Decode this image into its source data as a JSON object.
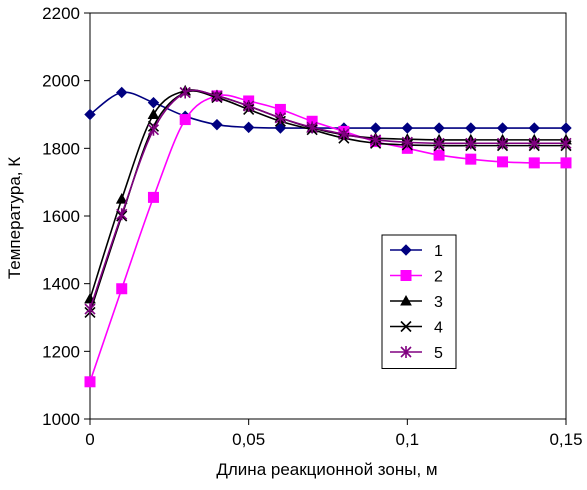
{
  "chart_data": {
    "type": "line",
    "title": "",
    "xlabel": "Длина реакционной зоны, м",
    "ylabel": "Температура, К",
    "xlim": [
      0,
      0.15
    ],
    "ylim": [
      1000,
      2200
    ],
    "xticks": [
      0,
      0.05,
      0.1,
      0.15
    ],
    "xtick_labels": [
      "0",
      "0,05",
      "0,1",
      "0,15"
    ],
    "yticks": [
      1000,
      1200,
      1400,
      1600,
      1800,
      2000,
      2200
    ],
    "ytick_labels": [
      "1000",
      "1200",
      "1400",
      "1600",
      "1800",
      "2000",
      "2200"
    ],
    "grid": false,
    "legend_position": "center-right",
    "series": [
      {
        "name": "1",
        "color": "#000080",
        "marker": "diamond",
        "x": [
          0,
          0.01,
          0.02,
          0.03,
          0.04,
          0.05,
          0.06,
          0.07,
          0.08,
          0.09,
          0.1,
          0.11,
          0.12,
          0.13,
          0.14,
          0.15
        ],
        "y": [
          1900,
          1965,
          1935,
          1895,
          1870,
          1862,
          1860,
          1860,
          1860,
          1860,
          1860,
          1860,
          1860,
          1860,
          1860,
          1860
        ]
      },
      {
        "name": "2",
        "color": "#FF00FF",
        "marker": "square",
        "x": [
          0,
          0.01,
          0.02,
          0.03,
          0.04,
          0.05,
          0.06,
          0.07,
          0.08,
          0.09,
          0.1,
          0.11,
          0.12,
          0.13,
          0.14,
          0.15
        ],
        "y": [
          1110,
          1385,
          1655,
          1885,
          1955,
          1940,
          1915,
          1880,
          1850,
          1820,
          1800,
          1780,
          1768,
          1760,
          1757,
          1757
        ]
      },
      {
        "name": "3",
        "color": "#000000",
        "marker": "triangle",
        "x": [
          0,
          0.01,
          0.02,
          0.03,
          0.04,
          0.05,
          0.06,
          0.07,
          0.08,
          0.09,
          0.1,
          0.11,
          0.12,
          0.13,
          0.14,
          0.15
        ],
        "y": [
          1355,
          1650,
          1900,
          1970,
          1955,
          1925,
          1890,
          1860,
          1840,
          1830,
          1827,
          1825,
          1825,
          1825,
          1825,
          1825
        ]
      },
      {
        "name": "4",
        "color": "#000000",
        "marker": "x",
        "x": [
          0,
          0.01,
          0.02,
          0.03,
          0.04,
          0.05,
          0.06,
          0.07,
          0.08,
          0.09,
          0.1,
          0.11,
          0.12,
          0.13,
          0.14,
          0.15
        ],
        "y": [
          1315,
          1600,
          1865,
          1965,
          1950,
          1915,
          1880,
          1855,
          1830,
          1815,
          1810,
          1808,
          1808,
          1808,
          1808,
          1808
        ]
      },
      {
        "name": "5",
        "color": "#800080",
        "marker": "star",
        "x": [
          0,
          0.01,
          0.02,
          0.03,
          0.04,
          0.05,
          0.06,
          0.07,
          0.08,
          0.09,
          0.1,
          0.11,
          0.12,
          0.13,
          0.14,
          0.15
        ],
        "y": [
          1325,
          1605,
          1855,
          1965,
          1955,
          1925,
          1890,
          1862,
          1842,
          1825,
          1818,
          1815,
          1815,
          1815,
          1815,
          1815
        ]
      }
    ]
  }
}
